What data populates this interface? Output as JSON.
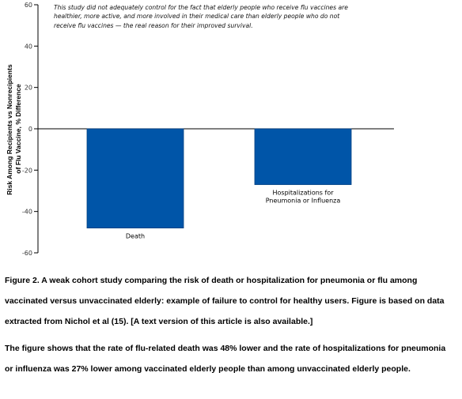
{
  "chart_data": {
    "type": "bar",
    "categories": [
      "Death",
      "Hospitalizations for Pneumonia or Influenza"
    ],
    "category_label_lines": [
      [
        "Death"
      ],
      [
        "Hospitalizations for",
        "Pneumonia or Influenza"
      ]
    ],
    "values": [
      -48,
      -27
    ],
    "ylabel_lines": [
      "Risk Among Recipients vs Nonrecipients",
      "of Flu Vaccine, % Difference"
    ],
    "yticks": [
      60,
      40,
      20,
      0,
      -20,
      -40,
      -60
    ],
    "ylim": [
      -60,
      60
    ],
    "grid": false,
    "bar_color": "#0055A8",
    "annotation": "This study did not adequately control for the fact that elderly people who receive flu vaccines are healthier, more active, and more involved in their medical care than elderly people who do not receive flu vaccines — the real reason for their improved survival."
  },
  "caption": "Figure 2. A weak cohort study comparing the risk of death or hospitalization for pneumonia or flu among vaccinated versus unvaccinated elderly: example of failure to control for healthy users. Figure is based on data extracted from Nichol et al (15). [A text version of this article is also available.]",
  "description": "The figure shows that the rate of flu-related death was 48% lower and the rate of hospitalizations for pneumonia or influenza was 27% lower among vaccinated elderly people than among unvaccinated elderly people."
}
